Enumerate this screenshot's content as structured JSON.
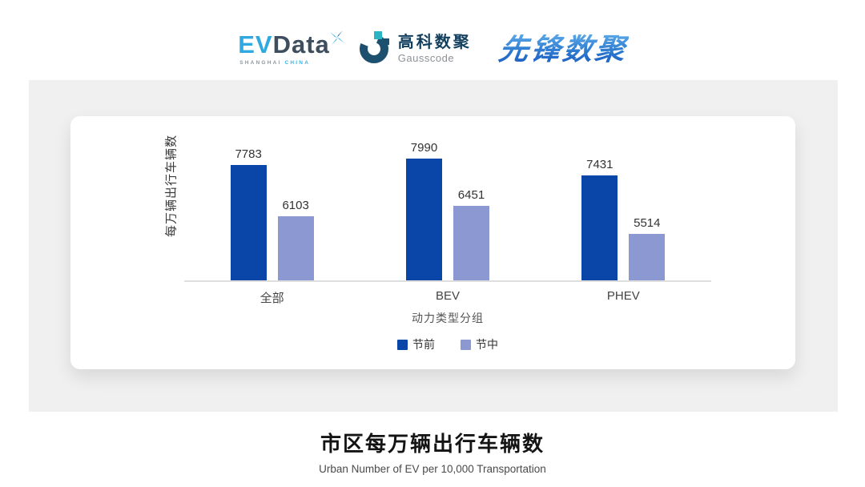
{
  "header": {
    "evdata_logo": {
      "ev": "EV",
      "data": "Data",
      "sub1": "SHANGHAI",
      "sub2": "CHINA"
    },
    "gausscode_logo": {
      "cn": "高科数聚",
      "en": "Gausscode"
    },
    "xianfeng_logo": {
      "text": "先锋数聚"
    }
  },
  "chart_data": {
    "type": "bar",
    "title": "市区每万辆出行车辆数",
    "subtitle": "Urban Number of EV per 10,000 Transportation",
    "categories": [
      "全部",
      "BEV",
      "PHEV"
    ],
    "series": [
      {
        "name": "节前",
        "color": "#0a45a8",
        "values": [
          7783,
          7990,
          7431
        ]
      },
      {
        "name": "节中",
        "color": "#8c98d2",
        "values": [
          6103,
          6451,
          5514
        ]
      }
    ],
    "xlabel": "动力类型分组",
    "ylabel": "每万辆出行车辆数",
    "ylim": [
      4000,
      9430
    ],
    "grid": false,
    "legend_position": "bottom",
    "bar_value_labels": true
  },
  "colors": {
    "panel_bg": "#f0f0f1",
    "card_bg": "#ffffff",
    "axis_line": "#dedede",
    "accent_cyan": "#2fa9e0",
    "brand_navy": "#123f5e",
    "xianfeng_blue": "#2e7bd0"
  }
}
